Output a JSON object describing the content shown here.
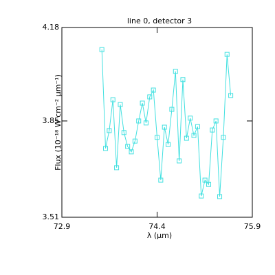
{
  "chart_data": {
    "type": "line",
    "title": "line 0, detector 3",
    "xlabel": "λ (μm)",
    "ylabel": "Flux (10⁻¹⁸ W cm⁻² μm⁻¹)",
    "x": [
      73.53,
      73.588,
      73.646,
      73.704,
      73.762,
      73.82,
      73.878,
      73.936,
      73.994,
      74.052,
      74.11,
      74.168,
      74.226,
      74.284,
      74.342,
      74.4,
      74.458,
      74.516,
      74.574,
      74.632,
      74.69,
      74.748,
      74.806,
      74.864,
      74.922,
      74.98,
      75.038,
      75.096,
      75.154,
      75.212,
      75.27,
      75.328,
      75.386,
      75.444,
      75.502,
      75.56
    ],
    "series": [
      {
        "color": "#40e0e0",
        "marker": "square",
        "values": [
          4.102,
          3.753,
          3.816,
          3.925,
          3.685,
          3.908,
          3.809,
          3.76,
          3.741,
          3.779,
          3.85,
          3.913,
          3.843,
          3.935,
          3.959,
          3.792,
          3.641,
          3.828,
          3.767,
          3.891,
          4.025,
          3.709,
          3.996,
          3.789,
          3.86,
          3.799,
          3.83,
          3.585,
          3.641,
          3.626,
          3.818,
          3.85,
          3.583,
          3.792,
          4.085,
          3.94
        ]
      }
    ],
    "xlim": [
      72.9,
      75.9
    ],
    "xticks": [
      72.9,
      74.4,
      75.9
    ],
    "ylim": [
      3.51,
      4.18
    ],
    "yticks": [
      3.51,
      3.85,
      4.18
    ],
    "grid": false
  }
}
